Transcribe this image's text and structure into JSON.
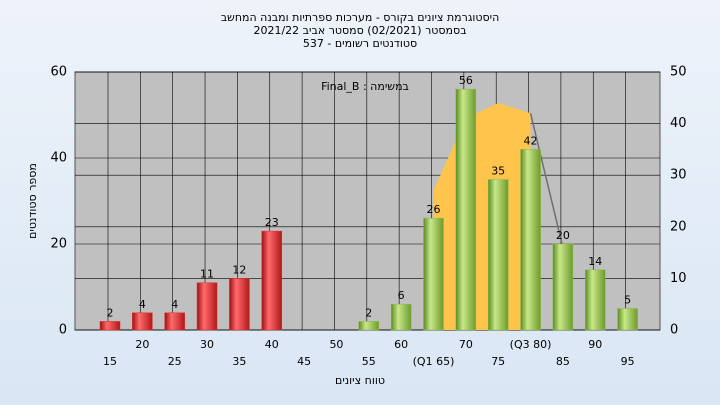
{
  "chart_data": {
    "type": "bar",
    "title_lines": [
      "היסטוגרמת ציונים בקורס - מערכות ספרתיות ומבנה המחשב",
      "בסמסטר  (02/2021)  סמסטר אביב 2021/22",
      "סטודנטים רשומים - 537"
    ],
    "legend_text": "Final_B : במשימה",
    "ylabel": "מספר סטודנטים",
    "xlabel": "טווח ציונים",
    "categories": [
      "15",
      "20",
      "25",
      "30",
      "35",
      "40",
      "45",
      "50",
      "55",
      "60",
      "(Q1 65)",
      "70",
      "75",
      "(Q3 80)",
      "85",
      "90",
      "95"
    ],
    "values": [
      2,
      4,
      4,
      11,
      12,
      23,
      null,
      null,
      2,
      6,
      26,
      56,
      35,
      42,
      20,
      14,
      5
    ],
    "bar_colors": [
      "#e03030",
      "#e03030",
      "#e03030",
      "#e03030",
      "#e03030",
      "#e03030",
      null,
      null,
      "#8cbc48",
      "#8cbc48",
      "#8cbc48",
      "#8cbc48",
      "#8cbc48",
      "#8cbc48",
      "#8cbc48",
      "#8cbc48",
      "#8cbc48"
    ],
    "ylim": [
      0,
      60
    ],
    "yticks": [
      0,
      20,
      40,
      60
    ],
    "y2lim": [
      0,
      50
    ],
    "y2ticks": [
      0,
      10,
      20,
      30,
      40,
      50
    ],
    "y2_area": {
      "axis": "y2",
      "color": "#ffc44c",
      "values": [
        null,
        null,
        null,
        null,
        null,
        null,
        null,
        null,
        null,
        null,
        27,
        41,
        44,
        42,
        null,
        null,
        null
      ]
    },
    "y2_line": {
      "axis": "y2",
      "color": "#707070",
      "values": [
        null,
        null,
        null,
        null,
        null,
        null,
        null,
        null,
        null,
        null,
        null,
        null,
        null,
        42,
        16,
        null,
        null
      ]
    },
    "grid": true
  }
}
